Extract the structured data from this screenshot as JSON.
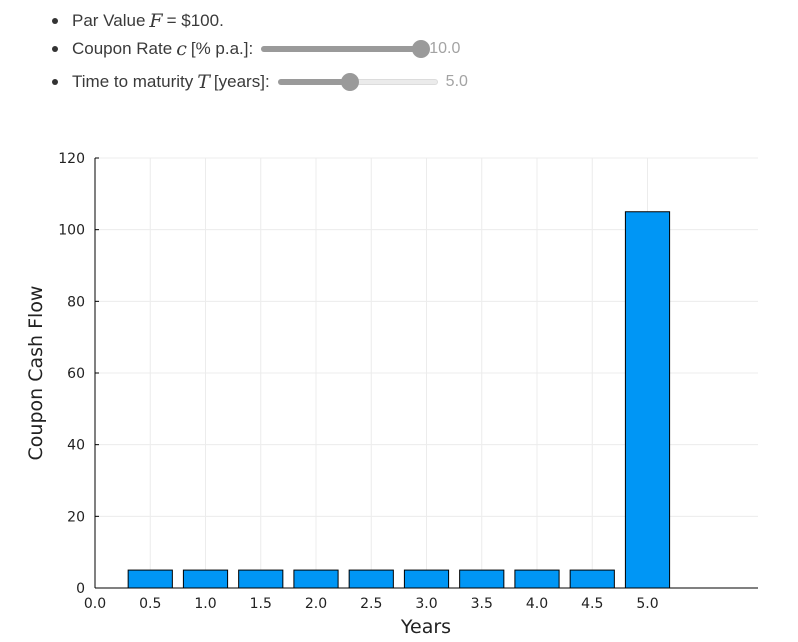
{
  "controls": {
    "par_value": {
      "label": "Par Value",
      "symbol": "F",
      "value_text": "= $100."
    },
    "coupon_rate": {
      "label": "Coupon Rate",
      "symbol": "c",
      "unit": "[% p.a.]:",
      "value": "10.0",
      "fraction": 1.0
    },
    "maturity": {
      "label": "Time to maturity",
      "symbol": "T",
      "unit": "[years]:",
      "value": "5.0",
      "fraction": 0.45
    }
  },
  "colors": {
    "bar": "#0096f5",
    "slider_active": "#9a9a9a",
    "grid": "#ececec"
  },
  "chart_data": {
    "type": "bar",
    "title": "",
    "xlabel": "Years",
    "ylabel": "Coupon Cash Flow",
    "categories": [
      "0.5",
      "1.0",
      "1.5",
      "2.0",
      "2.5",
      "3.0",
      "3.5",
      "4.0",
      "4.5",
      "5.0"
    ],
    "x": [
      0.5,
      1.0,
      1.5,
      2.0,
      2.5,
      3.0,
      3.5,
      4.0,
      4.5,
      5.0
    ],
    "values": [
      5,
      5,
      5,
      5,
      5,
      5,
      5,
      5,
      5,
      105
    ],
    "xlim": [
      0.0,
      6.0
    ],
    "ylim": [
      0,
      120
    ],
    "xticks": [
      "0.0",
      "0.5",
      "1.0",
      "1.5",
      "2.0",
      "2.5",
      "3.0",
      "3.5",
      "4.0",
      "4.5",
      "5.0"
    ],
    "yticks": [
      "0",
      "20",
      "40",
      "60",
      "80",
      "100",
      "120"
    ],
    "grid": true,
    "legend": "none"
  }
}
